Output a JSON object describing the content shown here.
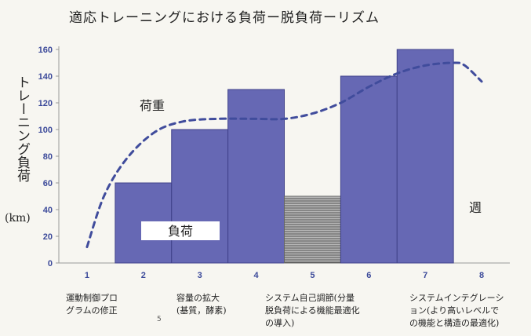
{
  "title": "適応トレーニングにおける負荷ー脱負荷ーリズム",
  "ylabel": "トレーニング負荷",
  "yunit": "(km)",
  "chart_data": {
    "type": "bar",
    "categories": [
      "1",
      "2",
      "3",
      "4",
      "5",
      "6",
      "7",
      "8"
    ],
    "values": [
      null,
      60,
      100,
      130,
      50,
      140,
      160,
      null
    ],
    "hatched_category": "5",
    "ylim": [
      0,
      160
    ],
    "yticks": [
      0,
      20,
      40,
      60,
      80,
      100,
      120,
      140,
      160
    ],
    "load_curve": {
      "label": "荷重",
      "x": [
        1,
        1.3,
        1.7,
        2.2,
        2.7,
        3.3,
        4.0,
        4.5,
        5.0,
        5.5,
        6.0,
        6.5,
        7.0,
        7.5,
        7.7,
        8.0
      ],
      "y": [
        12,
        50,
        78,
        98,
        106,
        108,
        108,
        108,
        112,
        120,
        132,
        142,
        148,
        150,
        148,
        136
      ]
    },
    "bar_legend": "負荷",
    "xaxis_note": "週",
    "colors": {
      "bar": "#6668b4",
      "bar_stroke": "#40428a",
      "curve": "#404c9c",
      "tick_label": "#3c4a9a"
    }
  },
  "phase_descriptions": [
    {
      "lines": [
        "運動制御プロ",
        "グラムの修正"
      ]
    },
    {
      "lines": [
        "容量の拡大",
        "(基質，酵素)"
      ]
    },
    {
      "lines": [
        "システム自己調節(分量",
        "脱負荷による機能最適化",
        "の導入)"
      ]
    },
    {
      "lines": [
        "システムインテグレーシ",
        "ョン(より高いレベルで",
        "の機能と構造の最適化)"
      ]
    }
  ],
  "stray_mark": "5"
}
